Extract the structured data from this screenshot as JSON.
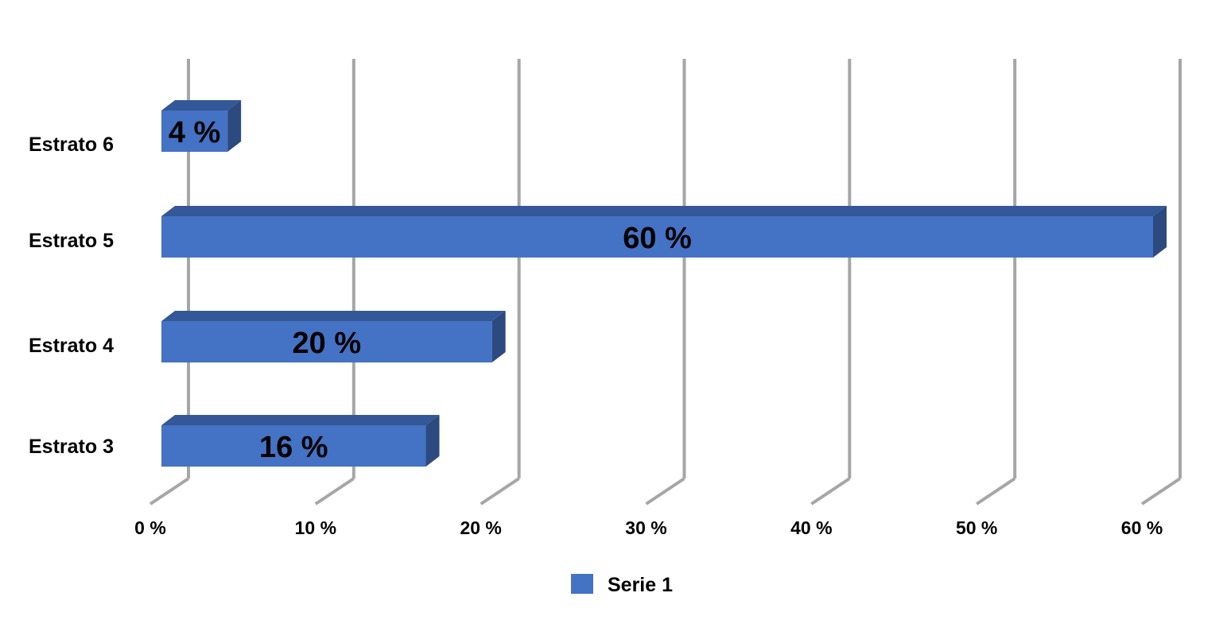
{
  "chart_data": {
    "type": "bar",
    "orientation": "horizontal",
    "three_d": true,
    "categories": [
      "Estrato 3",
      "Estrato 4",
      "Estrato 5",
      "Estrato 6"
    ],
    "series": [
      {
        "name": "Serie 1",
        "values": [
          16,
          20,
          60,
          4
        ],
        "color": "#4472C4"
      }
    ],
    "data_labels": [
      "16 %",
      "20 %",
      "60 %",
      "4 %"
    ],
    "xlim": [
      0,
      60
    ],
    "x_ticks": [
      0,
      10,
      20,
      30,
      40,
      50,
      60
    ],
    "x_tick_labels": [
      "0 %",
      "10 %",
      "20 %",
      "30 %",
      "40 %",
      "50 %",
      "60 %"
    ],
    "gridlines": true,
    "legend_position": "bottom",
    "title": "",
    "xlabel": "",
    "ylabel": ""
  },
  "colors": {
    "bar_front": "#4472C4",
    "bar_top": "#335797",
    "bar_side": "#2C4A80",
    "gridline": "#A6A6A6"
  }
}
